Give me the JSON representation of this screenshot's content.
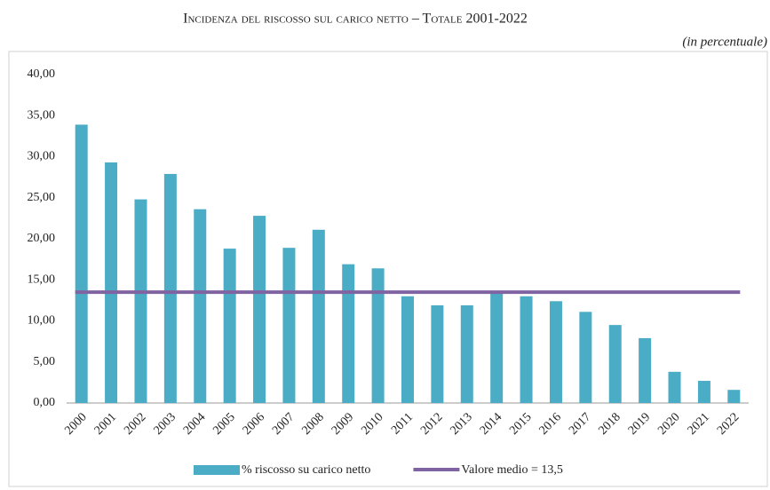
{
  "chart_data": {
    "type": "bar",
    "title": "Incidenza del riscosso sul carico netto – Totale 2001-2022",
    "subtitle": "(in percentuale)",
    "categories": [
      "2000",
      "2001",
      "2002",
      "2003",
      "2004",
      "2005",
      "2006",
      "2007",
      "2008",
      "2009",
      "2010",
      "2011",
      "2012",
      "2013",
      "2014",
      "2015",
      "2016",
      "2017",
      "2018",
      "2019",
      "2020",
      "2021",
      "2022"
    ],
    "series": [
      {
        "name": "% riscosso su carico netto",
        "type": "bar",
        "color": "#4bacc6",
        "values": [
          33.9,
          29.3,
          24.8,
          27.9,
          23.6,
          18.8,
          22.8,
          18.9,
          21.1,
          16.9,
          16.4,
          13.0,
          11.9,
          11.9,
          13.4,
          13.0,
          12.4,
          11.1,
          9.5,
          7.9,
          3.8,
          2.7,
          1.6
        ]
      },
      {
        "name": "Valore medio = 13,5",
        "type": "line",
        "color": "#8064a2",
        "values": [
          13.5,
          13.5,
          13.5,
          13.5,
          13.5,
          13.5,
          13.5,
          13.5,
          13.5,
          13.5,
          13.5,
          13.5,
          13.5,
          13.5,
          13.5,
          13.5,
          13.5,
          13.5,
          13.5,
          13.5,
          13.5,
          13.5,
          13.5
        ]
      }
    ],
    "ylim": [
      0,
      40
    ],
    "yticks": [
      {
        "value": 0,
        "label": "0,00"
      },
      {
        "value": 5,
        "label": "5,00"
      },
      {
        "value": 10,
        "label": "10,00"
      },
      {
        "value": 15,
        "label": "15,00"
      },
      {
        "value": 20,
        "label": "20,00"
      },
      {
        "value": 25,
        "label": "25,00"
      },
      {
        "value": 30,
        "label": "30,00"
      },
      {
        "value": 35,
        "label": "35,00"
      },
      {
        "value": 40,
        "label": "40,00"
      }
    ],
    "grid": false,
    "legend": "bottom"
  }
}
